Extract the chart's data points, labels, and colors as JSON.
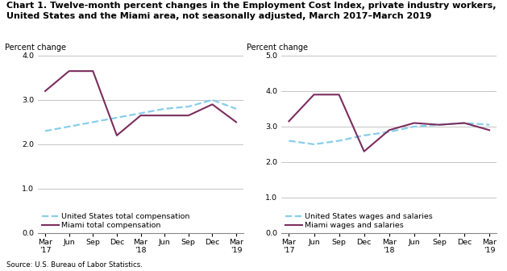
{
  "title_line1": "Chart 1. Twelve-month percent changes in the Employment Cost Index, private industry workers,",
  "title_line2": "United States and the Miami area, not seasonally adjusted, March 2017–March 2019",
  "source": "Source: U.S. Bureau of Labor Statistics.",
  "ylabel": "Percent change",
  "x_labels": [
    "Mar\n'17",
    "Jun",
    "Sep",
    "Dec",
    "Mar\n'18",
    "Jun",
    "Sep",
    "Dec",
    "Mar\n'19"
  ],
  "left_chart": {
    "us_total": [
      2.3,
      2.4,
      2.5,
      2.6,
      2.7,
      2.8,
      2.85,
      3.0,
      2.8
    ],
    "miami_total": [
      3.2,
      3.65,
      3.65,
      2.2,
      2.65,
      2.65,
      2.65,
      2.9,
      2.5
    ],
    "ylim": [
      0.0,
      4.0
    ],
    "yticks": [
      0.0,
      1.0,
      2.0,
      3.0,
      4.0
    ],
    "legend1": "United States total compensation",
    "legend2": "Miami total compensation"
  },
  "right_chart": {
    "us_wages": [
      2.6,
      2.5,
      2.6,
      2.75,
      2.85,
      3.0,
      3.05,
      3.1,
      3.05
    ],
    "miami_wages": [
      3.15,
      3.9,
      3.9,
      2.3,
      2.9,
      3.1,
      3.05,
      3.1,
      2.9
    ],
    "ylim": [
      0.0,
      5.0
    ],
    "yticks": [
      0.0,
      1.0,
      2.0,
      3.0,
      4.0,
      5.0
    ],
    "legend1": "United States wages and salaries",
    "legend2": "Miami wages and salaries"
  },
  "us_color": "#87CEEB",
  "miami_color": "#7B2D5E",
  "linewidth_us": 1.6,
  "linewidth_miami": 1.5,
  "background_color": "#ffffff",
  "grid_color": "#bbbbbb",
  "title_fontsize": 8.0,
  "label_fontsize": 7.0,
  "tick_fontsize": 6.8,
  "legend_fontsize": 6.8
}
